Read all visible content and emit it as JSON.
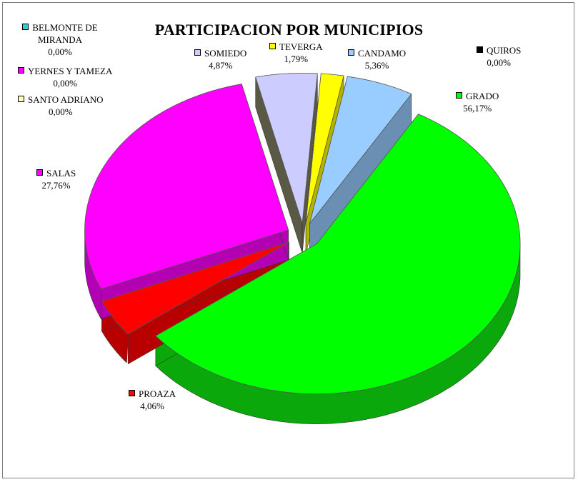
{
  "chart_data": {
    "type": "pie",
    "title": "PARTICIPACION POR MUNICIPIOS",
    "slices": [
      {
        "name": "GRADO",
        "label": "56,17%",
        "value": 56.17,
        "color": "#00ff00",
        "side": "#0aa80a"
      },
      {
        "name": "PROAZA",
        "label": "4,06%",
        "value": 4.06,
        "color": "#ff0000",
        "side": "#b80000"
      },
      {
        "name": "SANTO ADRIANO",
        "label": "0,00%",
        "value": 0.0,
        "color": "#ffffc0",
        "side": "#bdbd8c"
      },
      {
        "name": "YERNES Y TAMEZA",
        "label": "0,00%",
        "value": 0.0,
        "color": "#ff00ff",
        "side": "#b300b3"
      },
      {
        "name": "BELMONTE DE MIRANDA",
        "label": "0,00%",
        "value": 0.0,
        "color": "#33cccc",
        "side": "#238f8f"
      },
      {
        "name": "SALAS",
        "label": "27,76%",
        "value": 27.76,
        "color": "#ff00ff",
        "side": "#b300b3"
      },
      {
        "name": "SOMIEDO",
        "label": "4,87%",
        "value": 4.87,
        "color": "#ccccff",
        "side": "#595945"
      },
      {
        "name": "TEVERGA",
        "label": "1,79%",
        "value": 1.79,
        "color": "#ffff00",
        "side": "#b3b300"
      },
      {
        "name": "CANDAMO",
        "label": "5,36%",
        "value": 5.36,
        "color": "#99ccff",
        "side": "#6b8fb3"
      },
      {
        "name": "QUIROS",
        "label": "0,00%",
        "value": 0.0,
        "color": "#000000",
        "side": "#000000"
      }
    ]
  }
}
